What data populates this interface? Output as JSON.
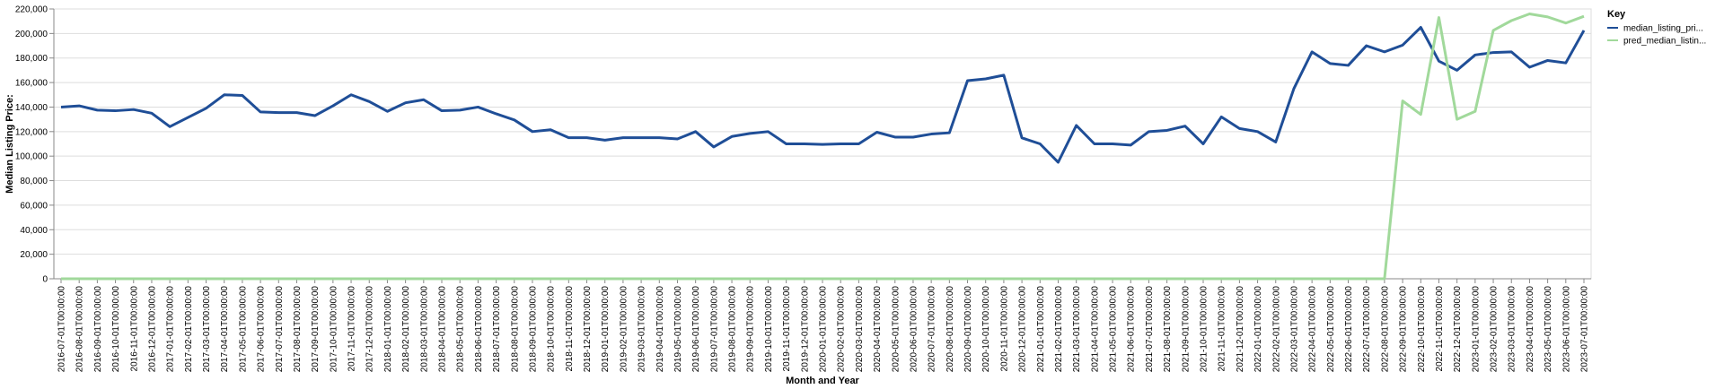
{
  "chart_data": {
    "type": "line",
    "xlabel": "Month and Year",
    "ylabel": "Median Listing Price:",
    "ylim": [
      0,
      220000
    ],
    "y_ticks": [
      0,
      20000,
      40000,
      60000,
      80000,
      100000,
      120000,
      140000,
      160000,
      180000,
      200000,
      220000
    ],
    "y_tick_labels": [
      "0",
      "20,000",
      "40,000",
      "60,000",
      "80,000",
      "100,000",
      "120,000",
      "140,000",
      "160,000",
      "180,000",
      "200,000",
      "220,000"
    ],
    "grid": true,
    "legend": {
      "title": "Key",
      "position": "top-right",
      "entries": [
        {
          "label": "median_listing_pri...",
          "series": 0
        },
        {
          "label": "pred_median_listin...",
          "series": 1
        }
      ]
    },
    "categories": [
      "2016-07-01T00:00:00",
      "2016-08-01T00:00:00",
      "2016-09-01T00:00:00",
      "2016-10-01T00:00:00",
      "2016-11-01T00:00:00",
      "2016-12-01T00:00:00",
      "2017-01-01T00:00:00",
      "2017-02-01T00:00:00",
      "2017-03-01T00:00:00",
      "2017-04-01T00:00:00",
      "2017-05-01T00:00:00",
      "2017-06-01T00:00:00",
      "2017-07-01T00:00:00",
      "2017-08-01T00:00:00",
      "2017-09-01T00:00:00",
      "2017-10-01T00:00:00",
      "2017-11-01T00:00:00",
      "2017-12-01T00:00:00",
      "2018-01-01T00:00:00",
      "2018-02-01T00:00:00",
      "2018-03-01T00:00:00",
      "2018-04-01T00:00:00",
      "2018-05-01T00:00:00",
      "2018-06-01T00:00:00",
      "2018-07-01T00:00:00",
      "2018-08-01T00:00:00",
      "2018-09-01T00:00:00",
      "2018-10-01T00:00:00",
      "2018-11-01T00:00:00",
      "2018-12-01T00:00:00",
      "2019-01-01T00:00:00",
      "2019-02-01T00:00:00",
      "2019-03-01T00:00:00",
      "2019-04-01T00:00:00",
      "2019-05-01T00:00:00",
      "2019-06-01T00:00:00",
      "2019-07-01T00:00:00",
      "2019-08-01T00:00:00",
      "2019-09-01T00:00:00",
      "2019-10-01T00:00:00",
      "2019-11-01T00:00:00",
      "2019-12-01T00:00:00",
      "2020-01-01T00:00:00",
      "2020-02-01T00:00:00",
      "2020-03-01T00:00:00",
      "2020-04-01T00:00:00",
      "2020-05-01T00:00:00",
      "2020-06-01T00:00:00",
      "2020-07-01T00:00:00",
      "2020-08-01T00:00:00",
      "2020-09-01T00:00:00",
      "2020-10-01T00:00:00",
      "2020-11-01T00:00:00",
      "2020-12-01T00:00:00",
      "2021-01-01T00:00:00",
      "2021-02-01T00:00:00",
      "2021-03-01T00:00:00",
      "2021-04-01T00:00:00",
      "2021-05-01T00:00:00",
      "2021-06-01T00:00:00",
      "2021-07-01T00:00:00",
      "2021-08-01T00:00:00",
      "2021-09-01T00:00:00",
      "2021-10-01T00:00:00",
      "2021-11-01T00:00:00",
      "2021-12-01T00:00:00",
      "2022-01-01T00:00:00",
      "2022-02-01T00:00:00",
      "2022-03-01T00:00:00",
      "2022-04-01T00:00:00",
      "2022-05-01T00:00:00",
      "2022-06-01T00:00:00",
      "2022-07-01T00:00:00",
      "2022-08-01T00:00:00",
      "2022-09-01T00:00:00",
      "2022-10-01T00:00:00",
      "2022-11-01T00:00:00",
      "2022-12-01T00:00:00",
      "2023-01-01T00:00:00",
      "2023-02-01T00:00:00",
      "2023-03-01T00:00:00",
      "2023-04-01T00:00:00",
      "2023-05-01T00:00:00",
      "2023-06-01T00:00:00",
      "2023-07-01T00:00:00"
    ],
    "series": [
      {
        "name": "median_listing_pri...",
        "color": "#1f4e97",
        "values": [
          140000,
          141000,
          137500,
          137000,
          138000,
          135000,
          124000,
          131500,
          139000,
          150000,
          149500,
          136000,
          135500,
          135500,
          133000,
          141000,
          150000,
          144500,
          136500,
          143500,
          146000,
          137000,
          137500,
          140000,
          134500,
          129500,
          120000,
          121500,
          115000,
          115000,
          113000,
          115000,
          115000,
          115000,
          114000,
          120000,
          107500,
          116000,
          118500,
          120000,
          110000,
          110000,
          109500,
          110000,
          110000,
          119500,
          115500,
          115500,
          118000,
          119000,
          161500,
          163000,
          166000,
          114900,
          110000,
          95000,
          125000,
          110000,
          110000,
          109000,
          120000,
          121000,
          124500,
          110000,
          132000,
          122500,
          120000,
          111500,
          155000,
          185000,
          175500,
          174000,
          190000,
          185000,
          190500,
          205000,
          177500,
          170000,
          182500,
          184500,
          185000,
          172500,
          178000,
          176000,
          202500
        ]
      },
      {
        "name": "pred_median_listin...",
        "color": "#a1d99b",
        "values": [
          0,
          0,
          0,
          0,
          0,
          0,
          0,
          0,
          0,
          0,
          0,
          0,
          0,
          0,
          0,
          0,
          0,
          0,
          0,
          0,
          0,
          0,
          0,
          0,
          0,
          0,
          0,
          0,
          0,
          0,
          0,
          0,
          0,
          0,
          0,
          0,
          0,
          0,
          0,
          0,
          0,
          0,
          0,
          0,
          0,
          0,
          0,
          0,
          0,
          0,
          0,
          0,
          0,
          0,
          0,
          0,
          0,
          0,
          0,
          0,
          0,
          0,
          0,
          0,
          0,
          0,
          0,
          0,
          0,
          0,
          0,
          0,
          0,
          0,
          145000,
          134000,
          213000,
          130000,
          136500,
          202500,
          210500,
          216000,
          213500,
          208500,
          214000
        ]
      }
    ]
  }
}
